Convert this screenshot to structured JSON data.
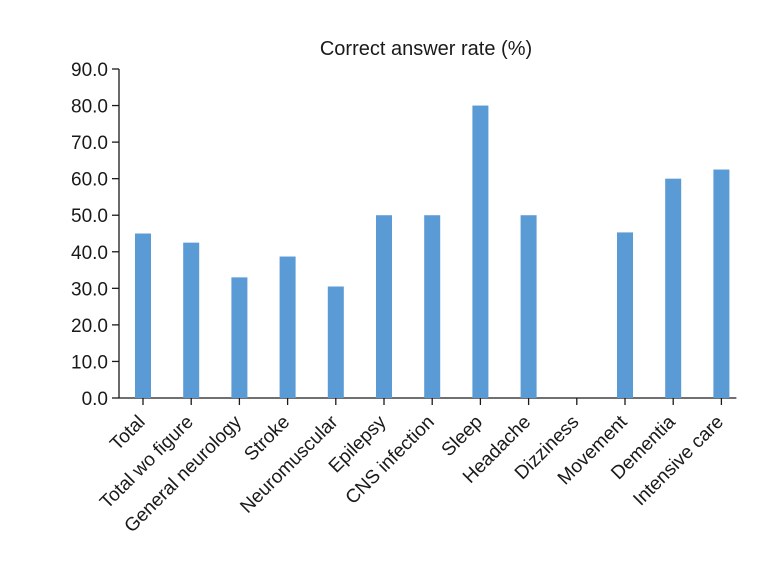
{
  "chart_data": {
    "type": "bar",
    "title": "Correct answer rate (%)",
    "categories": [
      "Total",
      "Total wo figure",
      "General neurology",
      "Stroke",
      "Neuromuscular",
      "Epilepsy",
      "CNS infection",
      "Sleep",
      "Headache",
      "Dizziness",
      "Movement",
      "Dementia",
      "Intensive care"
    ],
    "values": [
      45.0,
      42.5,
      33.0,
      38.7,
      30.5,
      50.0,
      50.0,
      80.0,
      50.0,
      0.0,
      45.3,
      60.0,
      62.5
    ],
    "ylim": [
      0,
      90
    ],
    "yticks": [
      "0.0",
      "10.0",
      "20.0",
      "30.0",
      "40.0",
      "50.0",
      "60.0",
      "70.0",
      "80.0",
      "90.0"
    ],
    "bar_color": "#5b9bd5",
    "grid": false
  }
}
